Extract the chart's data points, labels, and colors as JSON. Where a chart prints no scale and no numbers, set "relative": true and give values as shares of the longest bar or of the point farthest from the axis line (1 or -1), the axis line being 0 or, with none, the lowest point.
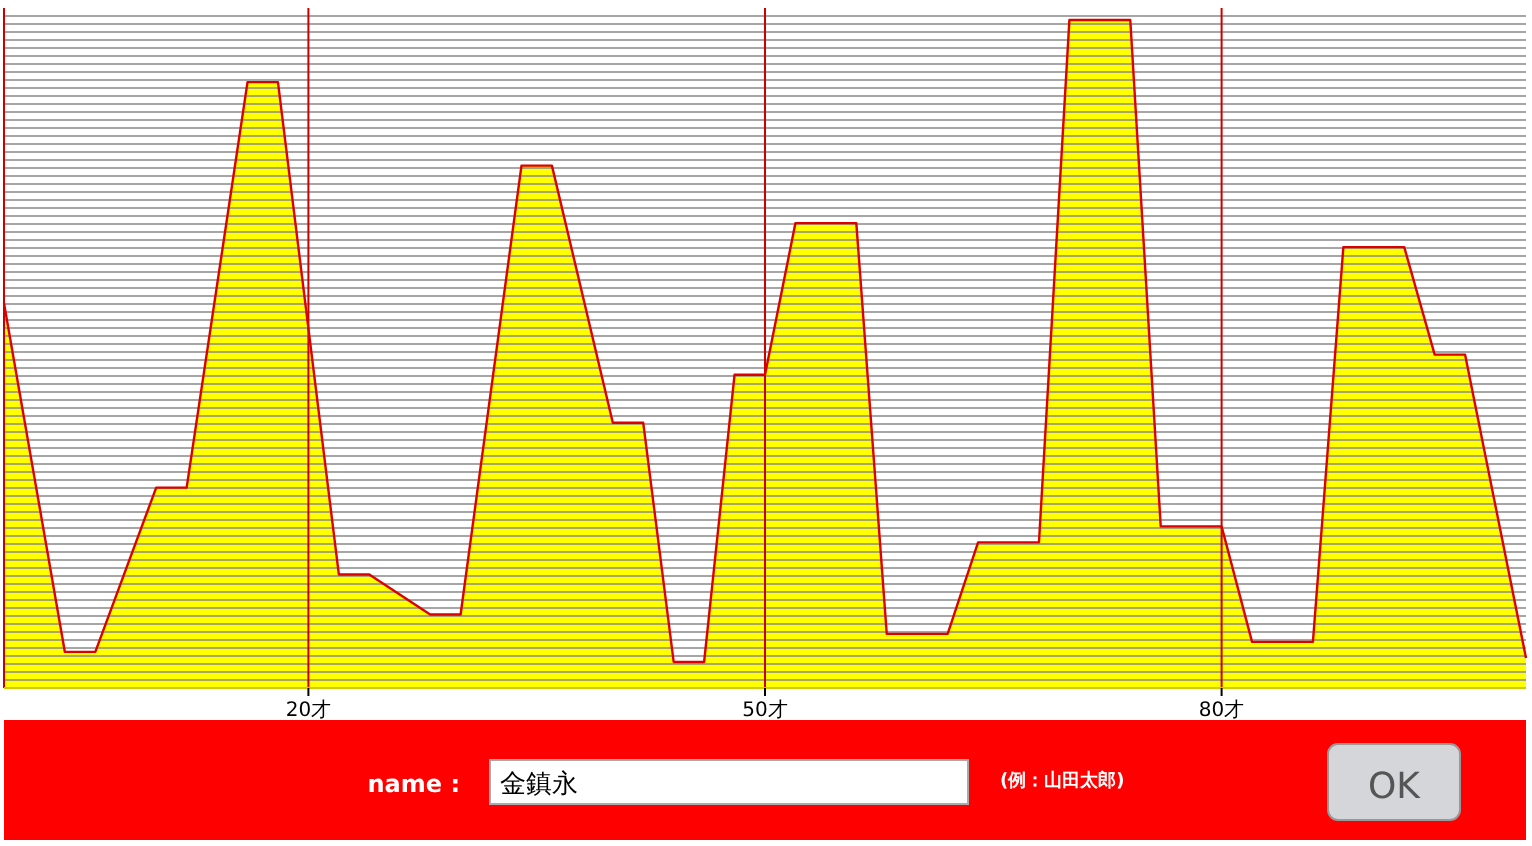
{
  "chart_data": {
    "type": "area",
    "relative": true,
    "color": "#ffff00",
    "x": [
      0,
      4,
      6,
      10,
      12,
      16,
      18,
      22,
      24,
      28,
      30,
      34,
      36,
      40,
      42,
      44,
      46,
      48,
      50,
      52,
      56,
      58,
      62,
      64,
      68,
      70,
      74,
      76,
      80,
      82,
      86,
      88,
      92,
      94,
      96,
      100
    ],
    "values": [
      0.576,
      0.054,
      0.054,
      0.3,
      0.3,
      0.907,
      0.907,
      0.17,
      0.17,
      0.11,
      0.11,
      0.782,
      0.782,
      0.397,
      0.397,
      0.039,
      0.039,
      0.469,
      0.469,
      0.696,
      0.696,
      0.081,
      0.081,
      0.218,
      0.218,
      1,
      1,
      0.242,
      0.242,
      0.069,
      0.069,
      0.66,
      0.66,
      0.499,
      0.499,
      0.045
    ],
    "xlim": [
      0,
      100
    ],
    "xticks": [
      {
        "value": 20,
        "label": "20才"
      },
      {
        "value": 50,
        "label": "50才"
      },
      {
        "value": 80,
        "label": "80才"
      }
    ],
    "grid": true,
    "annotations": [
      "name :",
      "金鎮永",
      "(例：山田太郎)",
      "OK"
    ]
  }
}
